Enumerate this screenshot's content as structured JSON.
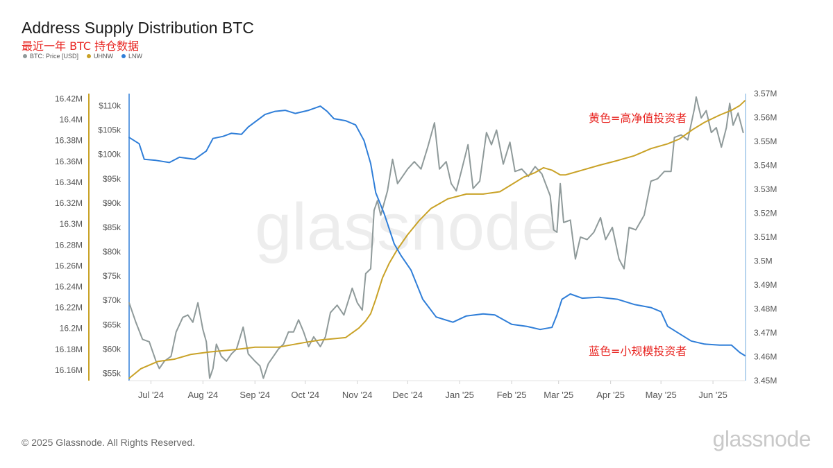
{
  "header": {
    "title": "Address Supply Distribution BTC",
    "subtitle": "最近一年 BTC 持仓数据"
  },
  "footer": {
    "copyright": "© 2025 Glassnode. All Rights Reserved.",
    "logo": "glassnode",
    "watermark": "glassnode"
  },
  "chart_data": {
    "type": "line",
    "legend_position": "top-left",
    "grid": false,
    "annotations": [
      {
        "text": "黄色=高净值投资者",
        "color": "#e8231f",
        "series": "UHNW"
      },
      {
        "text": "蓝色=小规模投资者",
        "color": "#e8231f",
        "series": "LNW"
      }
    ],
    "x_axis": {
      "range": [
        "2024-06-18",
        "2025-06-20"
      ],
      "ticks": [
        {
          "label": "Jul '24",
          "date": "2024-07-01"
        },
        {
          "label": "Aug '24",
          "date": "2024-08-01"
        },
        {
          "label": "Sep '24",
          "date": "2024-09-01"
        },
        {
          "label": "Oct '24",
          "date": "2024-10-01"
        },
        {
          "label": "Nov '24",
          "date": "2024-11-01"
        },
        {
          "label": "Dec '24",
          "date": "2024-12-01"
        },
        {
          "label": "Jan '25",
          "date": "2025-01-01"
        },
        {
          "label": "Feb '25",
          "date": "2025-02-01"
        },
        {
          "label": "Mar '25",
          "date": "2025-03-01"
        },
        {
          "label": "Apr '25",
          "date": "2025-04-01"
        },
        {
          "label": "May '25",
          "date": "2025-05-01"
        },
        {
          "label": "Jun '25",
          "date": "2025-06-01"
        }
      ]
    },
    "y_axes": {
      "lnw": {
        "color": "#8a8a8a",
        "range": [
          16.15,
          16.425
        ],
        "ticks": [
          "16.16M",
          "16.18M",
          "16.2M",
          "16.22M",
          "16.24M",
          "16.26M",
          "16.28M",
          "16.3M",
          "16.32M",
          "16.34M",
          "16.36M",
          "16.38M",
          "16.4M",
          "16.42M"
        ],
        "tick_values": [
          16.16,
          16.18,
          16.2,
          16.22,
          16.24,
          16.26,
          16.28,
          16.3,
          16.32,
          16.34,
          16.36,
          16.38,
          16.4,
          16.42
        ]
      },
      "price": {
        "color": "#c9a227",
        "range": [
          53500,
          112500
        ],
        "ticks": [
          "$55k",
          "$60k",
          "$65k",
          "$70k",
          "$75k",
          "$80k",
          "$85k",
          "$90k",
          "$95k",
          "$100k",
          "$105k",
          "$110k"
        ],
        "tick_values": [
          55000,
          60000,
          65000,
          70000,
          75000,
          80000,
          85000,
          90000,
          95000,
          100000,
          105000,
          110000
        ]
      },
      "uhnw": {
        "color": "#8a8a8a",
        "range": [
          3.45,
          3.57
        ],
        "ticks": [
          "3.45M",
          "3.46M",
          "3.47M",
          "3.48M",
          "3.49M",
          "3.5M",
          "3.51M",
          "3.52M",
          "3.53M",
          "3.54M",
          "3.55M",
          "3.56M",
          "3.57M"
        ],
        "tick_values": [
          3.45,
          3.46,
          3.47,
          3.48,
          3.49,
          3.5,
          3.51,
          3.52,
          3.53,
          3.54,
          3.55,
          3.56,
          3.57
        ]
      }
    },
    "series": [
      {
        "name": "BTC: Price [USD]",
        "axis": "price",
        "color": "#8f9a9a",
        "points": [
          [
            "2024-06-18",
            69500
          ],
          [
            "2024-06-22",
            65500
          ],
          [
            "2024-06-26",
            62000
          ],
          [
            "2024-06-30",
            61500
          ],
          [
            "2024-07-04",
            57500
          ],
          [
            "2024-07-06",
            56000
          ],
          [
            "2024-07-09",
            57500
          ],
          [
            "2024-07-13",
            58500
          ],
          [
            "2024-07-16",
            63500
          ],
          [
            "2024-07-20",
            66500
          ],
          [
            "2024-07-23",
            67000
          ],
          [
            "2024-07-26",
            65500
          ],
          [
            "2024-07-29",
            69500
          ],
          [
            "2024-08-01",
            64000
          ],
          [
            "2024-08-03",
            61500
          ],
          [
            "2024-08-05",
            54000
          ],
          [
            "2024-08-07",
            56000
          ],
          [
            "2024-08-09",
            61000
          ],
          [
            "2024-08-12",
            58500
          ],
          [
            "2024-08-15",
            57500
          ],
          [
            "2024-08-18",
            59000
          ],
          [
            "2024-08-21",
            60000
          ],
          [
            "2024-08-25",
            64500
          ],
          [
            "2024-08-28",
            59000
          ],
          [
            "2024-09-01",
            57500
          ],
          [
            "2024-09-04",
            56500
          ],
          [
            "2024-09-06",
            54000
          ],
          [
            "2024-09-09",
            57000
          ],
          [
            "2024-09-12",
            58500
          ],
          [
            "2024-09-15",
            60000
          ],
          [
            "2024-09-18",
            61000
          ],
          [
            "2024-09-21",
            63500
          ],
          [
            "2024-09-24",
            63500
          ],
          [
            "2024-09-27",
            66000
          ],
          [
            "2024-09-30",
            63500
          ],
          [
            "2024-10-03",
            60500
          ],
          [
            "2024-10-06",
            62500
          ],
          [
            "2024-10-10",
            60500
          ],
          [
            "2024-10-13",
            62500
          ],
          [
            "2024-10-16",
            67500
          ],
          [
            "2024-10-20",
            69000
          ],
          [
            "2024-10-24",
            67000
          ],
          [
            "2024-10-29",
            72500
          ],
          [
            "2024-11-01",
            69500
          ],
          [
            "2024-11-04",
            68000
          ],
          [
            "2024-11-06",
            75500
          ],
          [
            "2024-11-09",
            76500
          ],
          [
            "2024-11-11",
            88500
          ],
          [
            "2024-11-13",
            90500
          ],
          [
            "2024-11-15",
            87500
          ],
          [
            "2024-11-19",
            92500
          ],
          [
            "2024-11-22",
            99000
          ],
          [
            "2024-11-25",
            94000
          ],
          [
            "2024-11-28",
            95500
          ],
          [
            "2024-12-01",
            97000
          ],
          [
            "2024-12-05",
            98500
          ],
          [
            "2024-12-09",
            97000
          ],
          [
            "2024-12-13",
            101500
          ],
          [
            "2024-12-17",
            106500
          ],
          [
            "2024-12-20",
            97000
          ],
          [
            "2024-12-24",
            98500
          ],
          [
            "2024-12-27",
            94000
          ],
          [
            "2024-12-30",
            92500
          ],
          [
            "2025-01-02",
            96500
          ],
          [
            "2025-01-06",
            102000
          ],
          [
            "2025-01-09",
            93000
          ],
          [
            "2025-01-13",
            94500
          ],
          [
            "2025-01-17",
            104500
          ],
          [
            "2025-01-20",
            102000
          ],
          [
            "2025-01-23",
            105000
          ],
          [
            "2025-01-27",
            98000
          ],
          [
            "2025-01-31",
            102500
          ],
          [
            "2025-02-03",
            96500
          ],
          [
            "2025-02-07",
            97000
          ],
          [
            "2025-02-11",
            95500
          ],
          [
            "2025-02-15",
            97500
          ],
          [
            "2025-02-19",
            96000
          ],
          [
            "2025-02-24",
            91500
          ],
          [
            "2025-02-26",
            84500
          ],
          [
            "2025-02-28",
            84000
          ],
          [
            "2025-03-02",
            94000
          ],
          [
            "2025-03-04",
            86000
          ],
          [
            "2025-03-08",
            86500
          ],
          [
            "2025-03-11",
            78500
          ],
          [
            "2025-03-14",
            83000
          ],
          [
            "2025-03-18",
            82500
          ],
          [
            "2025-03-22",
            84000
          ],
          [
            "2025-03-26",
            87000
          ],
          [
            "2025-03-29",
            82500
          ],
          [
            "2025-04-02",
            85000
          ],
          [
            "2025-04-06",
            78500
          ],
          [
            "2025-04-09",
            76500
          ],
          [
            "2025-04-12",
            85000
          ],
          [
            "2025-04-16",
            84500
          ],
          [
            "2025-04-21",
            87500
          ],
          [
            "2025-04-25",
            94500
          ],
          [
            "2025-04-29",
            95000
          ],
          [
            "2025-05-03",
            96500
          ],
          [
            "2025-05-07",
            96500
          ],
          [
            "2025-05-09",
            103500
          ],
          [
            "2025-05-13",
            104000
          ],
          [
            "2025-05-17",
            103000
          ],
          [
            "2025-05-21",
            109500
          ],
          [
            "2025-05-22",
            111800
          ],
          [
            "2025-05-25",
            107500
          ],
          [
            "2025-05-28",
            109000
          ],
          [
            "2025-05-31",
            104500
          ],
          [
            "2025-06-03",
            105500
          ],
          [
            "2025-06-06",
            101500
          ],
          [
            "2025-06-09",
            105500
          ],
          [
            "2025-06-11",
            110500
          ],
          [
            "2025-06-13",
            106000
          ],
          [
            "2025-06-16",
            108500
          ],
          [
            "2025-06-19",
            104500
          ]
        ]
      },
      {
        "name": "UHNW",
        "axis": "uhnw",
        "color": "#c9a227",
        "points": [
          [
            "2024-06-18",
            3.451
          ],
          [
            "2024-06-25",
            3.455
          ],
          [
            "2024-07-05",
            3.458
          ],
          [
            "2024-07-15",
            3.459
          ],
          [
            "2024-07-25",
            3.461
          ],
          [
            "2024-08-05",
            3.462
          ],
          [
            "2024-08-20",
            3.463
          ],
          [
            "2024-09-01",
            3.464
          ],
          [
            "2024-09-15",
            3.464
          ],
          [
            "2024-10-01",
            3.466
          ],
          [
            "2024-10-10",
            3.467
          ],
          [
            "2024-10-25",
            3.468
          ],
          [
            "2024-11-02",
            3.472
          ],
          [
            "2024-11-06",
            3.475
          ],
          [
            "2024-11-09",
            3.478
          ],
          [
            "2024-11-12",
            3.484
          ],
          [
            "2024-11-16",
            3.493
          ],
          [
            "2024-11-20",
            3.499
          ],
          [
            "2024-11-25",
            3.505
          ],
          [
            "2024-12-01",
            3.511
          ],
          [
            "2024-12-08",
            3.517
          ],
          [
            "2024-12-15",
            3.522
          ],
          [
            "2024-12-25",
            3.526
          ],
          [
            "2025-01-05",
            3.528
          ],
          [
            "2025-01-15",
            3.528
          ],
          [
            "2025-01-25",
            3.529
          ],
          [
            "2025-02-01",
            3.532
          ],
          [
            "2025-02-08",
            3.535
          ],
          [
            "2025-02-15",
            3.537
          ],
          [
            "2025-02-20",
            3.539
          ],
          [
            "2025-02-25",
            3.538
          ],
          [
            "2025-03-02",
            3.536
          ],
          [
            "2025-03-05",
            3.536
          ],
          [
            "2025-03-10",
            3.537
          ],
          [
            "2025-03-15",
            3.538
          ],
          [
            "2025-03-25",
            3.54
          ],
          [
            "2025-04-05",
            3.542
          ],
          [
            "2025-04-15",
            3.544
          ],
          [
            "2025-04-25",
            3.547
          ],
          [
            "2025-05-05",
            3.549
          ],
          [
            "2025-05-12",
            3.551
          ],
          [
            "2025-05-20",
            3.555
          ],
          [
            "2025-05-27",
            3.558
          ],
          [
            "2025-06-05",
            3.561
          ],
          [
            "2025-06-12",
            3.563
          ],
          [
            "2025-06-17",
            3.565
          ],
          [
            "2025-06-20",
            3.567
          ]
        ]
      },
      {
        "name": "LNW",
        "axis": "lnw",
        "color": "#2f7ed8",
        "points": [
          [
            "2024-06-18",
            16.383
          ],
          [
            "2024-06-24",
            16.377
          ],
          [
            "2024-06-27",
            16.362
          ],
          [
            "2024-07-04",
            16.361
          ],
          [
            "2024-07-12",
            16.359
          ],
          [
            "2024-07-18",
            16.364
          ],
          [
            "2024-07-27",
            16.362
          ],
          [
            "2024-08-03",
            16.37
          ],
          [
            "2024-08-07",
            16.382
          ],
          [
            "2024-08-13",
            16.384
          ],
          [
            "2024-08-18",
            16.387
          ],
          [
            "2024-08-24",
            16.386
          ],
          [
            "2024-08-28",
            16.393
          ],
          [
            "2024-09-07",
            16.405
          ],
          [
            "2024-09-13",
            16.408
          ],
          [
            "2024-09-19",
            16.409
          ],
          [
            "2024-09-25",
            16.406
          ],
          [
            "2024-10-03",
            16.409
          ],
          [
            "2024-10-10",
            16.413
          ],
          [
            "2024-10-14",
            16.408
          ],
          [
            "2024-10-18",
            16.401
          ],
          [
            "2024-10-25",
            16.399
          ],
          [
            "2024-10-31",
            16.395
          ],
          [
            "2024-11-05",
            16.38
          ],
          [
            "2024-11-09",
            16.358
          ],
          [
            "2024-11-12",
            16.33
          ],
          [
            "2024-11-17",
            16.31
          ],
          [
            "2024-11-23",
            16.281
          ],
          [
            "2024-11-27",
            16.27
          ],
          [
            "2024-12-03",
            16.256
          ],
          [
            "2024-12-10",
            16.228
          ],
          [
            "2024-12-18",
            16.211
          ],
          [
            "2024-12-28",
            16.206
          ],
          [
            "2025-01-05",
            16.212
          ],
          [
            "2025-01-15",
            16.214
          ],
          [
            "2025-01-22",
            16.213
          ],
          [
            "2025-02-01",
            16.204
          ],
          [
            "2025-02-10",
            16.202
          ],
          [
            "2025-02-18",
            16.199
          ],
          [
            "2025-02-25",
            16.201
          ],
          [
            "2025-02-28",
            16.213
          ],
          [
            "2025-03-03",
            16.228
          ],
          [
            "2025-03-08",
            16.233
          ],
          [
            "2025-03-15",
            16.229
          ],
          [
            "2025-03-25",
            16.23
          ],
          [
            "2025-04-05",
            16.228
          ],
          [
            "2025-04-15",
            16.223
          ],
          [
            "2025-04-25",
            16.22
          ],
          [
            "2025-05-01",
            16.216
          ],
          [
            "2025-05-05",
            16.202
          ],
          [
            "2025-05-13",
            16.194
          ],
          [
            "2025-05-19",
            16.188
          ],
          [
            "2025-05-27",
            16.185
          ],
          [
            "2025-06-05",
            16.184
          ],
          [
            "2025-06-12",
            16.184
          ],
          [
            "2025-06-17",
            16.177
          ],
          [
            "2025-06-20",
            16.174
          ]
        ]
      }
    ]
  }
}
